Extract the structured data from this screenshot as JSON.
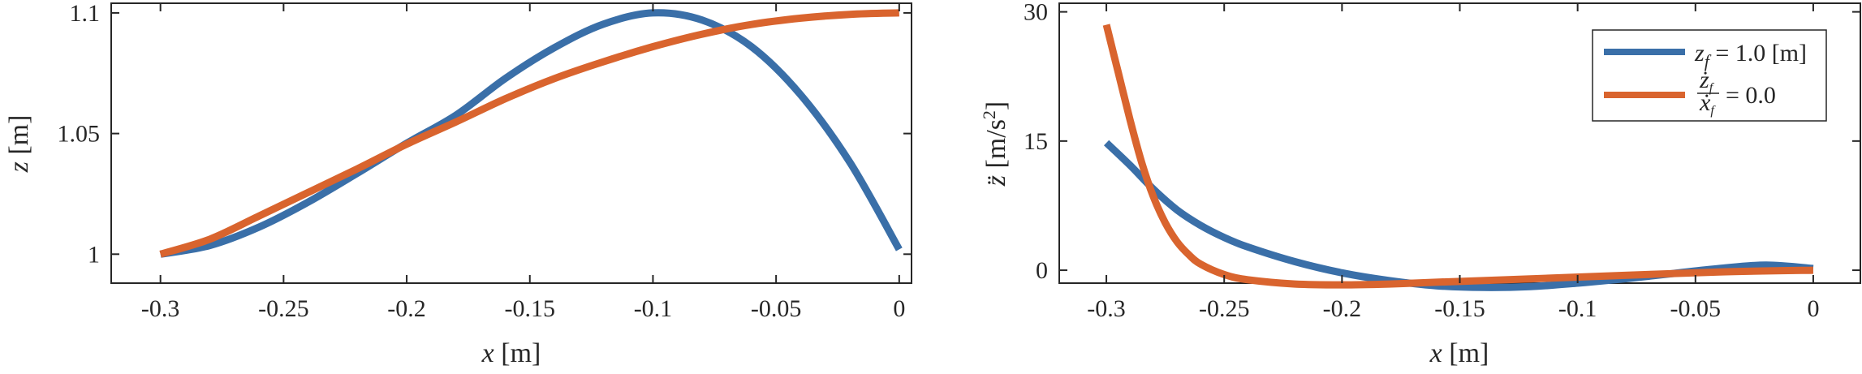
{
  "colors": {
    "blue": "#3A6FA8",
    "orange": "#D9642E",
    "axis": "#262626"
  },
  "chart_data": [
    {
      "type": "line",
      "title": "",
      "xlabel": "x [m]",
      "ylabel": "z [m]",
      "xlim": [
        -0.32,
        0.005
      ],
      "ylim": [
        0.988,
        1.104
      ],
      "xticks": [
        -0.3,
        -0.25,
        -0.2,
        -0.15,
        -0.1,
        -0.05,
        0
      ],
      "xtick_labels": [
        "-0.3",
        "-0.25",
        "-0.2",
        "-0.15",
        "-0.1",
        "-0.05",
        "0"
      ],
      "yticks": [
        1.0,
        1.05,
        1.1
      ],
      "ytick_labels": [
        "1",
        "1.05",
        "1.1"
      ],
      "grid": false,
      "series": [
        {
          "color": "blue",
          "x": [
            -0.3,
            -0.28,
            -0.26,
            -0.24,
            -0.22,
            -0.2,
            -0.18,
            -0.16,
            -0.14,
            -0.12,
            -0.1,
            -0.08,
            -0.06,
            -0.04,
            -0.02,
            0.0
          ],
          "y": [
            1.0,
            1.0036,
            1.0112,
            1.0216,
            1.0336,
            1.046,
            1.0576,
            1.0728,
            1.0856,
            1.0954,
            1.1,
            1.097,
            1.086,
            1.066,
            1.038,
            1.002
          ]
        },
        {
          "color": "orange",
          "x": [
            -0.3,
            -0.28,
            -0.26,
            -0.24,
            -0.22,
            -0.2,
            -0.18,
            -0.16,
            -0.14,
            -0.12,
            -0.1,
            -0.08,
            -0.06,
            -0.04,
            -0.02,
            0.0
          ],
          "y": [
            1.0,
            1.0062,
            1.0158,
            1.0256,
            1.0354,
            1.0456,
            1.0548,
            1.0644,
            1.0728,
            1.0798,
            1.086,
            1.0912,
            1.0952,
            1.0978,
            1.0994,
            1.1
          ]
        }
      ]
    },
    {
      "type": "line",
      "title": "",
      "xlabel": "x [m]",
      "ylabel": "z̈ [m/s²]",
      "xlim": [
        -0.32,
        0.02
      ],
      "ylim": [
        -1.5,
        31
      ],
      "xticks": [
        -0.3,
        -0.25,
        -0.2,
        -0.15,
        -0.1,
        -0.05,
        0
      ],
      "xtick_labels": [
        "-0.3",
        "-0.25",
        "-0.2",
        "-0.15",
        "-0.1",
        "-0.05",
        "0"
      ],
      "yticks": [
        0,
        15,
        30
      ],
      "ytick_labels": [
        "0",
        "15",
        "30"
      ],
      "grid": false,
      "legend": {
        "position": "top-right",
        "entries": [
          {
            "color": "blue",
            "label_main": "z",
            "label_sub": "f",
            "label_rest": " = 1.0 [m]"
          },
          {
            "color": "orange",
            "label_num": "ż",
            "label_num_sub": "f",
            "label_den": "ẋ",
            "label_den_sub": "f",
            "label_rest": "= 0.0"
          }
        ]
      },
      "series": [
        {
          "color": "blue",
          "x": [
            -0.3,
            -0.29,
            -0.28,
            -0.27,
            -0.26,
            -0.25,
            -0.24,
            -0.22,
            -0.2,
            -0.18,
            -0.16,
            -0.14,
            -0.12,
            -0.1,
            -0.08,
            -0.06,
            -0.04,
            -0.02,
            0.0
          ],
          "y": [
            14.8,
            12.2,
            9.4,
            7.0,
            5.2,
            3.8,
            2.7,
            1.0,
            -0.3,
            -1.2,
            -1.8,
            -2.0,
            -1.9,
            -1.5,
            -1.0,
            -0.4,
            0.2,
            0.6,
            0.2
          ]
        },
        {
          "color": "orange",
          "x": [
            -0.3,
            -0.295,
            -0.29,
            -0.285,
            -0.28,
            -0.275,
            -0.27,
            -0.265,
            -0.26,
            -0.25,
            -0.24,
            -0.22,
            -0.2,
            -0.18,
            -0.16,
            -0.12,
            -0.08,
            -0.04,
            0.0
          ],
          "y": [
            28.5,
            23.0,
            17.5,
            12.5,
            8.5,
            5.5,
            3.3,
            1.8,
            0.7,
            -0.5,
            -1.1,
            -1.6,
            -1.7,
            -1.6,
            -1.4,
            -1.0,
            -0.6,
            -0.2,
            0.0
          ]
        }
      ]
    }
  ]
}
